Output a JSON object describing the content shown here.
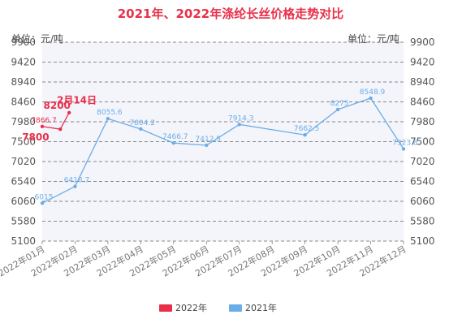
{
  "chart_data": {
    "type": "line",
    "title": "2021年、2022年涤纶长丝价格走势对比",
    "unit_left": "单位：元/吨",
    "unit_right": "单位：元/吨",
    "xlabel": "",
    "ylabel": "",
    "categories": [
      "2022年01月",
      "2022年02月",
      "2022年03月",
      "2022年04月",
      "2022年05月",
      "2022年06月",
      "2022年07月",
      "2022年08月",
      "2022年09月",
      "2022年10月",
      "2022年11月",
      "2022年12月"
    ],
    "ylim": [
      5100,
      9900
    ],
    "yticks": [
      "9900",
      "9420",
      "8940",
      "8460",
      "7980",
      "7500",
      "7020",
      "6540",
      "6060",
      "5580",
      "5100"
    ],
    "grid": true,
    "legend_position": "bottom",
    "series": [
      {
        "name": "2022年",
        "color": "#e8304a",
        "points": [
          {
            "x": 0,
            "y": 7866.7,
            "label": "7866.7"
          },
          {
            "x": 0.55,
            "y": 7800,
            "label": ""
          },
          {
            "x": 0.82,
            "y": 8200,
            "label": ""
          }
        ]
      },
      {
        "name": "2021年",
        "color": "#6aaee8",
        "points": [
          {
            "x": 0,
            "y": 6015,
            "label": "6015"
          },
          {
            "x": 1,
            "y": 6418.7,
            "label": "6418.7"
          },
          {
            "x": 2,
            "y": 8055.6,
            "label": "8055.6"
          },
          {
            "x": 3,
            "y": 7804.2,
            "label": "7804.2"
          },
          {
            "x": 4,
            "y": 7466.7,
            "label": "7466.7"
          },
          {
            "x": 5,
            "y": 7412.5,
            "label": "7412.5"
          },
          {
            "x": 6,
            "y": 7914.3,
            "label": "7914.3"
          },
          {
            "x": 8,
            "y": 7662.5,
            "label": "7662.5"
          },
          {
            "x": 9,
            "y": 8275,
            "label": "8275"
          },
          {
            "x": 10,
            "y": 8548.9,
            "label": "8548.9"
          },
          {
            "x": 11,
            "y": 7323.8,
            "label": "7323.8"
          }
        ]
      }
    ],
    "annotations": [
      {
        "text": "8200",
        "x": 0.45,
        "y": 8290,
        "color": "#e8304a"
      },
      {
        "text": "2月14日",
        "x": 1.05,
        "y": 8420,
        "color": "#e8304a"
      },
      {
        "text": "7800",
        "x": -0.2,
        "y": 7530,
        "color": "#e8304a"
      }
    ]
  }
}
